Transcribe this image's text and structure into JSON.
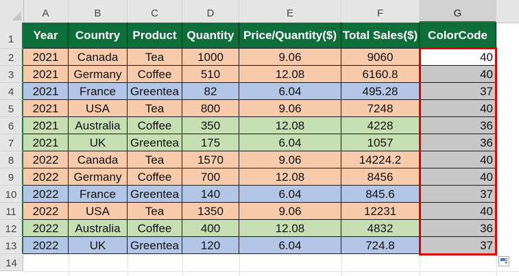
{
  "columns": [
    "A",
    "B",
    "C",
    "D",
    "E",
    "F",
    "G"
  ],
  "selected_column": "G",
  "row_numbers": [
    "1",
    "2",
    "3",
    "4",
    "5",
    "6",
    "7",
    "8",
    "9",
    "10",
    "11",
    "12",
    "13",
    "14"
  ],
  "headers": [
    "Year",
    "Country",
    "Product",
    "Quantity",
    "Price/Quantity($)",
    "Total Sales($)",
    "ColorCode"
  ],
  "colors": {
    "header_bg": "#0d6e3a",
    "tea_row": "#f8cbad",
    "coffee_row": "#c6e0b4",
    "greentea_row": "#b4c6e7",
    "colorcode_cell": "#c8c8c8",
    "selection_border": "#e00000"
  },
  "rows": [
    {
      "year": "2021",
      "country": "Canada",
      "product": "Tea",
      "quantity": "1000",
      "price": "9.06",
      "total": "9060",
      "colorcode": "40"
    },
    {
      "year": "2021",
      "country": "Germany",
      "product": "Coffee",
      "quantity": "510",
      "price": "12.08",
      "total": "6160.8",
      "colorcode": "40"
    },
    {
      "year": "2021",
      "country": "France",
      "product": "Greentea",
      "quantity": "82",
      "price": "6.04",
      "total": "495.28",
      "colorcode": "37"
    },
    {
      "year": "2021",
      "country": "USA",
      "product": "Tea",
      "quantity": "800",
      "price": "9.06",
      "total": "7248",
      "colorcode": "40"
    },
    {
      "year": "2021",
      "country": "Australia",
      "product": "Coffee",
      "quantity": "350",
      "price": "12.08",
      "total": "4228",
      "colorcode": "36"
    },
    {
      "year": "2021",
      "country": "UK",
      "product": "Greentea",
      "quantity": "175",
      "price": "6.04",
      "total": "1057",
      "colorcode": "36"
    },
    {
      "year": "2022",
      "country": "Canada",
      "product": "Tea",
      "quantity": "1570",
      "price": "9.06",
      "total": "14224.2",
      "colorcode": "40"
    },
    {
      "year": "2022",
      "country": "Germany",
      "product": "Coffee",
      "quantity": "700",
      "price": "12.08",
      "total": "8456",
      "colorcode": "40"
    },
    {
      "year": "2022",
      "country": "France",
      "product": "Greentea",
      "quantity": "140",
      "price": "6.04",
      "total": "845.6",
      "colorcode": "37"
    },
    {
      "year": "2022",
      "country": "USA",
      "product": "Tea",
      "quantity": "1350",
      "price": "9.06",
      "total": "12231",
      "colorcode": "40"
    },
    {
      "year": "2022",
      "country": "Australia",
      "product": "Coffee",
      "quantity": "400",
      "price": "12.08",
      "total": "4832",
      "colorcode": "36"
    },
    {
      "year": "2022",
      "country": "UK",
      "product": "Greentea",
      "quantity": "120",
      "price": "6.04",
      "total": "724.8",
      "colorcode": "37"
    }
  ],
  "row_fill": [
    "tea_row",
    "tea_row",
    "greentea_row",
    "tea_row",
    "coffee_row",
    "coffee_row",
    "tea_row",
    "tea_row",
    "greentea_row",
    "tea_row",
    "coffee_row",
    "greentea_row"
  ],
  "quick_analysis_icon": "quick-analysis-icon"
}
